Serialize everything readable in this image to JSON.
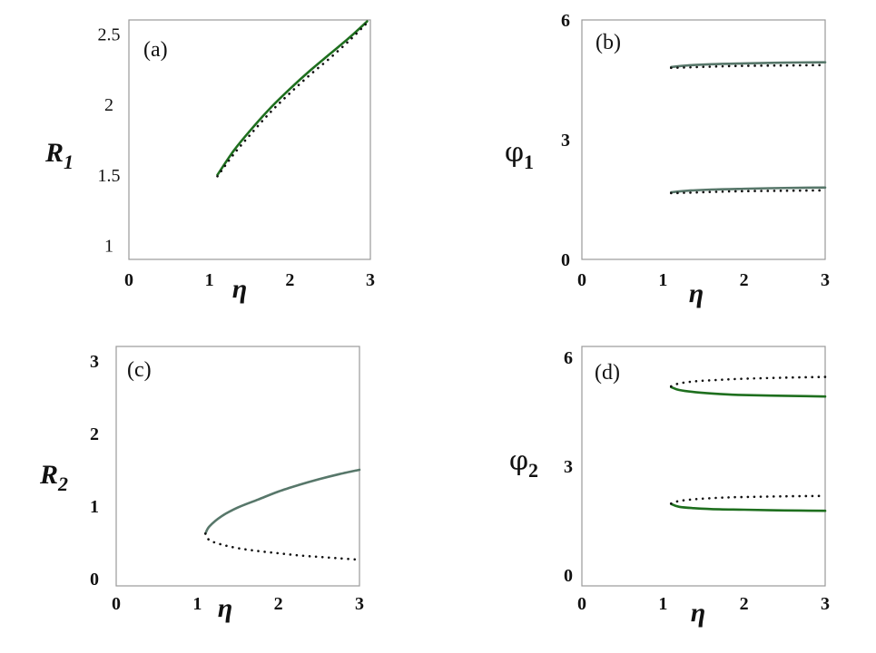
{
  "colors": {
    "stable_dark_green": "#1e6f1e",
    "stable_gray_green": "#57776a",
    "unstable": "#111111",
    "frame": "#9a9a9a"
  },
  "chart_data": [
    {
      "type": "line",
      "panel_label": "(a)",
      "xlabel": "η",
      "ylabel": "R",
      "ylabel_sub": "1",
      "xlim": [
        0,
        3
      ],
      "ylim": [
        0.9,
        2.6
      ],
      "xticks": [
        "0",
        "1",
        "2",
        "3"
      ],
      "yticks": [
        "1",
        "1.5",
        "2",
        "2.5"
      ],
      "ytick_values": [
        1,
        1.5,
        2,
        2.5
      ],
      "grid": false,
      "series": [
        {
          "style": "solid",
          "color": "#1e6f1e",
          "x": [
            1.1,
            1.3,
            1.5,
            1.75,
            2.0,
            2.25,
            2.5,
            2.75,
            2.96
          ],
          "y": [
            1.5,
            1.67,
            1.81,
            1.97,
            2.11,
            2.24,
            2.36,
            2.48,
            2.59
          ]
        },
        {
          "style": "dotted",
          "color": "#111111",
          "x": [
            1.1,
            1.3,
            1.5,
            1.75,
            2.0,
            2.25,
            2.5,
            2.75,
            2.96
          ],
          "y": [
            1.49,
            1.645,
            1.78,
            1.94,
            2.08,
            2.21,
            2.33,
            2.46,
            2.58
          ]
        }
      ]
    },
    {
      "type": "line",
      "panel_label": "(b)",
      "xlabel": "η",
      "ylabel": "φ",
      "ylabel_sub": "1",
      "xlim": [
        0,
        3
      ],
      "ylim": [
        0,
        6
      ],
      "xticks": [
        "0",
        "1",
        "2",
        "3"
      ],
      "yticks": [
        "0",
        "3",
        "6"
      ],
      "ytick_values": [
        0,
        3,
        6
      ],
      "grid": false,
      "series": [
        {
          "style": "solid",
          "color": "#57776a",
          "x": [
            1.1,
            1.3,
            1.6,
            2.0,
            2.5,
            3.0
          ],
          "y": [
            4.82,
            4.86,
            4.89,
            4.91,
            4.93,
            4.94
          ]
        },
        {
          "style": "dotted",
          "color": "#111111",
          "x": [
            1.1,
            1.3,
            1.6,
            2.0,
            2.5,
            3.0
          ],
          "y": [
            4.8,
            4.81,
            4.83,
            4.85,
            4.86,
            4.87
          ]
        },
        {
          "style": "solid",
          "color": "#57776a",
          "x": [
            1.1,
            1.3,
            1.6,
            2.0,
            2.5,
            3.0
          ],
          "y": [
            1.68,
            1.72,
            1.75,
            1.77,
            1.79,
            1.8
          ]
        },
        {
          "style": "dotted",
          "color": "#111111",
          "x": [
            1.1,
            1.3,
            1.6,
            2.0,
            2.5,
            3.0
          ],
          "y": [
            1.66,
            1.67,
            1.69,
            1.71,
            1.72,
            1.73
          ]
        }
      ]
    },
    {
      "type": "line",
      "panel_label": "(c)",
      "xlabel": "η",
      "ylabel": "R",
      "ylabel_sub": "2",
      "xlim": [
        0,
        3
      ],
      "ylim": [
        -0.1,
        3.2
      ],
      "xticks": [
        "0",
        "1",
        "2",
        "3"
      ],
      "yticks": [
        "0",
        "1",
        "2",
        "3"
      ],
      "ytick_values": [
        0,
        1,
        2,
        3
      ],
      "grid": false,
      "series": [
        {
          "style": "solid",
          "color": "#57776a",
          "x": [
            1.1,
            1.15,
            1.3,
            1.5,
            1.75,
            2.0,
            2.25,
            2.5,
            2.75,
            3.0
          ],
          "y": [
            0.62,
            0.72,
            0.86,
            0.98,
            1.09,
            1.2,
            1.29,
            1.37,
            1.44,
            1.5
          ]
        },
        {
          "style": "dotted",
          "color": "#111111",
          "x": [
            1.1,
            1.15,
            1.3,
            1.5,
            1.75,
            2.0,
            2.25,
            2.5,
            2.75,
            3.0
          ],
          "y": [
            0.62,
            0.53,
            0.47,
            0.42,
            0.38,
            0.35,
            0.32,
            0.3,
            0.28,
            0.26
          ]
        }
      ]
    },
    {
      "type": "line",
      "panel_label": "(d)",
      "xlabel": "η",
      "ylabel": "φ",
      "ylabel_sub": "2",
      "xlim": [
        0,
        3
      ],
      "ylim": [
        -0.3,
        6.3
      ],
      "xticks": [
        "0",
        "1",
        "2",
        "3"
      ],
      "yticks": [
        "0",
        "3",
        "6"
      ],
      "ytick_values": [
        0,
        3,
        6
      ],
      "grid": false,
      "series": [
        {
          "style": "solid",
          "color": "#1e6f1e",
          "x": [
            1.1,
            1.2,
            1.4,
            1.7,
            2.0,
            2.5,
            3.0
          ],
          "y": [
            5.18,
            5.1,
            5.04,
            4.99,
            4.96,
            4.94,
            4.92
          ]
        },
        {
          "style": "dotted",
          "color": "#111111",
          "x": [
            1.1,
            1.2,
            1.4,
            1.7,
            2.0,
            2.5,
            3.0
          ],
          "y": [
            5.2,
            5.28,
            5.34,
            5.38,
            5.41,
            5.44,
            5.46
          ]
        },
        {
          "style": "solid",
          "color": "#1e6f1e",
          "x": [
            1.1,
            1.2,
            1.4,
            1.7,
            2.0,
            2.5,
            3.0
          ],
          "y": [
            1.96,
            1.88,
            1.84,
            1.81,
            1.8,
            1.78,
            1.77
          ]
        },
        {
          "style": "dotted",
          "color": "#111111",
          "x": [
            1.1,
            1.2,
            1.4,
            1.7,
            2.0,
            2.5,
            3.0
          ],
          "y": [
            1.97,
            2.04,
            2.09,
            2.13,
            2.15,
            2.17,
            2.18
          ]
        }
      ]
    }
  ]
}
